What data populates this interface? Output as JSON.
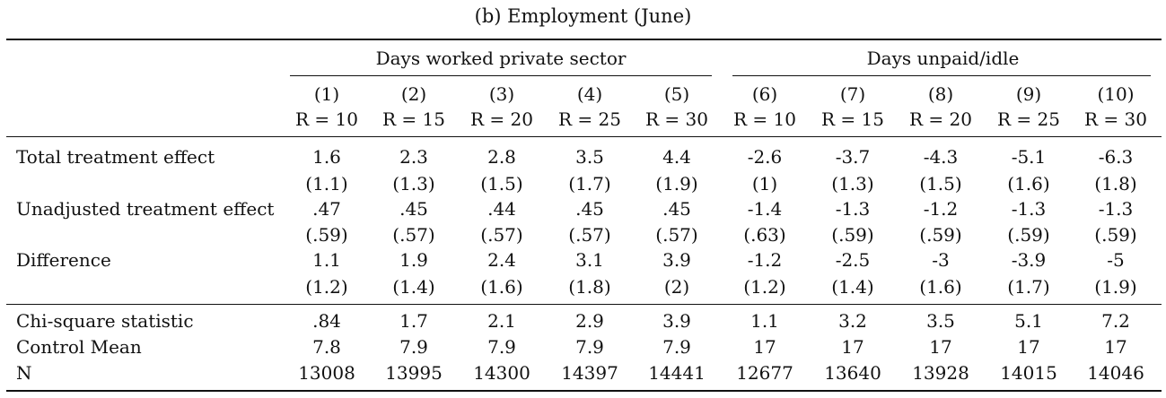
{
  "caption": "(b) Employment (June)",
  "groups": [
    {
      "label": "Days worked private sector"
    },
    {
      "label": "Days unpaid/idle"
    }
  ],
  "columns": [
    {
      "num": "(1)",
      "r": "R = 10"
    },
    {
      "num": "(2)",
      "r": "R = 15"
    },
    {
      "num": "(3)",
      "r": "R = 20"
    },
    {
      "num": "(4)",
      "r": "R = 25"
    },
    {
      "num": "(5)",
      "r": "R = 30"
    },
    {
      "num": "(6)",
      "r": "R = 10"
    },
    {
      "num": "(7)",
      "r": "R = 15"
    },
    {
      "num": "(8)",
      "r": "R = 20"
    },
    {
      "num": "(9)",
      "r": "R = 25"
    },
    {
      "num": "(10)",
      "r": "R = 30"
    }
  ],
  "rows": [
    {
      "label": "Total treatment effect",
      "values": [
        "1.6",
        "2.3",
        "2.8",
        "3.5",
        "4.4",
        "-2.6",
        "-3.7",
        "-4.3",
        "-5.1",
        "-6.3"
      ]
    },
    {
      "label": "",
      "values": [
        "(1.1)",
        "(1.3)",
        "(1.5)",
        "(1.7)",
        "(1.9)",
        "(1)",
        "(1.3)",
        "(1.5)",
        "(1.6)",
        "(1.8)"
      ]
    },
    {
      "label": "Unadjusted treatment effect",
      "values": [
        ".47",
        ".45",
        ".44",
        ".45",
        ".45",
        "-1.4",
        "-1.3",
        "-1.2",
        "-1.3",
        "-1.3"
      ]
    },
    {
      "label": "",
      "values": [
        "(.59)",
        "(.57)",
        "(.57)",
        "(.57)",
        "(.57)",
        "(.63)",
        "(.59)",
        "(.59)",
        "(.59)",
        "(.59)"
      ]
    },
    {
      "label": "Difference",
      "values": [
        "1.1",
        "1.9",
        "2.4",
        "3.1",
        "3.9",
        "-1.2",
        "-2.5",
        "-3",
        "-3.9",
        "-5"
      ]
    },
    {
      "label": "",
      "values": [
        "(1.2)",
        "(1.4)",
        "(1.6)",
        "(1.8)",
        "(2)",
        "(1.2)",
        "(1.4)",
        "(1.6)",
        "(1.7)",
        "(1.9)"
      ]
    },
    {
      "label": "Chi-square statistic",
      "values": [
        ".84",
        "1.7",
        "2.1",
        "2.9",
        "3.9",
        "1.1",
        "3.2",
        "3.5",
        "5.1",
        "7.2"
      ]
    },
    {
      "label": "Control Mean",
      "values": [
        "7.8",
        "7.9",
        "7.9",
        "7.9",
        "7.9",
        "17",
        "17",
        "17",
        "17",
        "17"
      ]
    },
    {
      "label": "N",
      "values": [
        "13008",
        "13995",
        "14300",
        "14397",
        "14441",
        "12677",
        "13640",
        "13928",
        "14015",
        "14046"
      ]
    }
  ]
}
